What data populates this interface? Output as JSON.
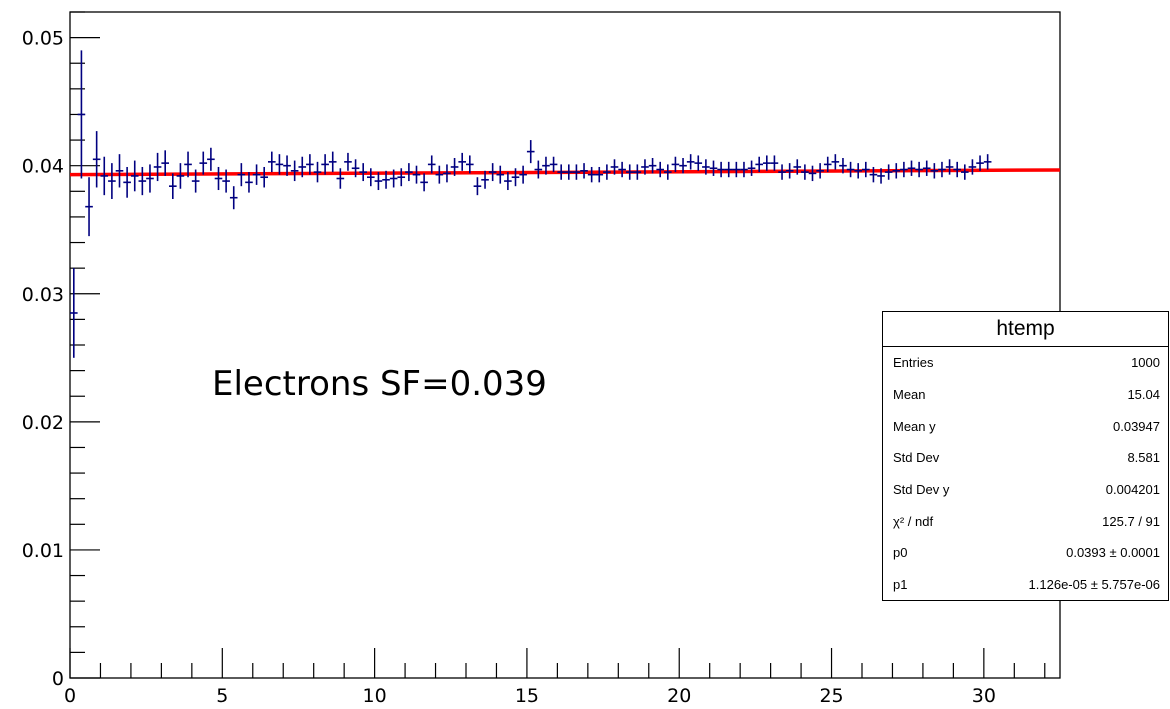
{
  "chart_data": {
    "type": "scatter",
    "title": "",
    "xlabel": "",
    "ylabel": "",
    "xlim": [
      0,
      32.5
    ],
    "ylim": [
      0,
      0.052
    ],
    "x_ticks": [
      0,
      5,
      10,
      15,
      20,
      25,
      30
    ],
    "x_tick_labels": [
      "0",
      "5",
      "10",
      "15",
      "20",
      "25",
      "30"
    ],
    "y_ticks": [
      0,
      0.01,
      0.02,
      0.03,
      0.04,
      0.05
    ],
    "y_tick_labels": [
      "0",
      "0.01",
      "0.02",
      "0.03",
      "0.04",
      "0.05"
    ],
    "grid": false,
    "legend": "none",
    "marker_color": "#000080",
    "fit_color": "#ff0000",
    "bin_width": 0.25,
    "series": [
      {
        "x": [
          0.125,
          0.375,
          0.625,
          0.875,
          1.125,
          1.375,
          1.625,
          1.875,
          2.125,
          2.375,
          2.625,
          2.875,
          3.125,
          3.375,
          3.625,
          3.875,
          4.125,
          4.375,
          4.625,
          4.875,
          5.125,
          5.375,
          5.625,
          5.875,
          6.125,
          6.375,
          6.625,
          6.875,
          7.125,
          7.375,
          7.625,
          7.875,
          8.125,
          8.375,
          8.625,
          8.875,
          9.125,
          9.375,
          9.625,
          9.875,
          10.125,
          10.375,
          10.625,
          10.875,
          11.125,
          11.375,
          11.625,
          11.875,
          12.125,
          12.375,
          12.625,
          12.875,
          13.125,
          13.375,
          13.625,
          13.875,
          14.125,
          14.375,
          14.625,
          14.875,
          15.125,
          15.375,
          15.625,
          15.875,
          16.125,
          16.375,
          16.625,
          16.875,
          17.125,
          17.375,
          17.625,
          17.875,
          18.125,
          18.375,
          18.625,
          18.875,
          19.125,
          19.375,
          19.625,
          19.875,
          20.125,
          20.375,
          20.625,
          20.875,
          21.125,
          21.375,
          21.625,
          21.875,
          22.125,
          22.375,
          22.625,
          22.875,
          23.125,
          23.375,
          23.625,
          23.875,
          24.125,
          24.375,
          24.625,
          24.875,
          25.125,
          25.375,
          25.625,
          25.875,
          26.125,
          26.375,
          26.625,
          26.875,
          27.125,
          27.375,
          27.625,
          27.875,
          28.125,
          28.375,
          28.625,
          28.875,
          29.125,
          29.375,
          29.625,
          29.875,
          30.125
        ],
        "y": [
          0.0285,
          0.044,
          0.0368,
          0.0405,
          0.0392,
          0.0388,
          0.0396,
          0.0387,
          0.0392,
          0.0388,
          0.039,
          0.0399,
          0.0402,
          0.0384,
          0.0392,
          0.0401,
          0.0388,
          0.0402,
          0.0405,
          0.039,
          0.0388,
          0.0375,
          0.0393,
          0.0387,
          0.0393,
          0.0391,
          0.0403,
          0.0401,
          0.04,
          0.0396,
          0.0399,
          0.0401,
          0.0395,
          0.0401,
          0.0403,
          0.039,
          0.0403,
          0.0398,
          0.0395,
          0.0391,
          0.0388,
          0.0389,
          0.039,
          0.0391,
          0.0395,
          0.0393,
          0.0387,
          0.0401,
          0.0393,
          0.0394,
          0.0399,
          0.0403,
          0.0401,
          0.0384,
          0.0389,
          0.0395,
          0.0393,
          0.0388,
          0.0391,
          0.0393,
          0.0411,
          0.0397,
          0.04,
          0.0401,
          0.0395,
          0.0395,
          0.0395,
          0.0396,
          0.0393,
          0.0393,
          0.0395,
          0.0399,
          0.0397,
          0.0395,
          0.0395,
          0.0399,
          0.04,
          0.0397,
          0.0395,
          0.0401,
          0.04,
          0.0403,
          0.0402,
          0.0399,
          0.0398,
          0.0397,
          0.0397,
          0.0397,
          0.0397,
          0.0398,
          0.0401,
          0.0402,
          0.0402,
          0.0395,
          0.0396,
          0.0399,
          0.0395,
          0.0394,
          0.0396,
          0.0401,
          0.0403,
          0.04,
          0.0397,
          0.0396,
          0.0397,
          0.0393,
          0.0392,
          0.0395,
          0.0396,
          0.0397,
          0.0398,
          0.0397,
          0.0398,
          0.0396,
          0.0397,
          0.0399,
          0.0397,
          0.0395,
          0.0399,
          0.0402,
          0.0403
        ],
        "yerr": [
          0.0035,
          0.005,
          0.0023,
          0.0022,
          0.0015,
          0.0014,
          0.0013,
          0.0012,
          0.0012,
          0.0011,
          0.0011,
          0.0011,
          0.001,
          0.001,
          0.001,
          0.001,
          0.0009,
          0.0009,
          0.0009,
          0.0009,
          0.0009,
          0.0009,
          0.0009,
          0.0008,
          0.0008,
          0.0008,
          0.0008,
          0.0008,
          0.0008,
          0.0008,
          0.0008,
          0.0008,
          0.0008,
          0.0008,
          0.0008,
          0.0008,
          0.0007,
          0.0007,
          0.0007,
          0.0007,
          0.0007,
          0.0007,
          0.0007,
          0.0007,
          0.0007,
          0.0007,
          0.0007,
          0.0007,
          0.0007,
          0.0007,
          0.0007,
          0.0007,
          0.0007,
          0.0007,
          0.0007,
          0.0007,
          0.0007,
          0.0007,
          0.0007,
          0.0007,
          0.0009,
          0.0007,
          0.0007,
          0.0006,
          0.0006,
          0.0006,
          0.0006,
          0.0006,
          0.0006,
          0.0006,
          0.0006,
          0.0006,
          0.0006,
          0.0006,
          0.0006,
          0.0006,
          0.0006,
          0.0006,
          0.0006,
          0.0006,
          0.0006,
          0.0006,
          0.0006,
          0.0006,
          0.0006,
          0.0006,
          0.0006,
          0.0006,
          0.0006,
          0.0006,
          0.0006,
          0.0006,
          0.0006,
          0.0006,
          0.0006,
          0.0006,
          0.0006,
          0.0006,
          0.0006,
          0.0006,
          0.0006,
          0.0006,
          0.0006,
          0.0006,
          0.0006,
          0.0006,
          0.0006,
          0.0006,
          0.0006,
          0.0006,
          0.0006,
          0.0006,
          0.0006,
          0.0006,
          0.0006,
          0.0006,
          0.0006,
          0.0006,
          0.0006,
          0.0006,
          0.0006
        ]
      }
    ],
    "fit": {
      "p0": 0.0393,
      "p1": 1.126e-05,
      "x_range": [
        0,
        32.5
      ]
    },
    "annotations": [
      "Electrons SF=0.039"
    ]
  },
  "stats_box": {
    "title": "htemp",
    "rows": [
      {
        "label": "Entries",
        "value": "1000"
      },
      {
        "label": "Mean",
        "value": "15.04"
      },
      {
        "label": "Mean y",
        "value": "0.03947"
      },
      {
        "label": "Std Dev",
        "value": "8.581"
      },
      {
        "label": "Std Dev y",
        "value": "0.004201"
      },
      {
        "label": "χ² / ndf",
        "value": "125.7 / 91"
      },
      {
        "label": "p0",
        "value": "0.0393 ± 0.0001"
      },
      {
        "label": "p1",
        "value": "1.126e-05 ± 5.757e-06"
      }
    ]
  }
}
